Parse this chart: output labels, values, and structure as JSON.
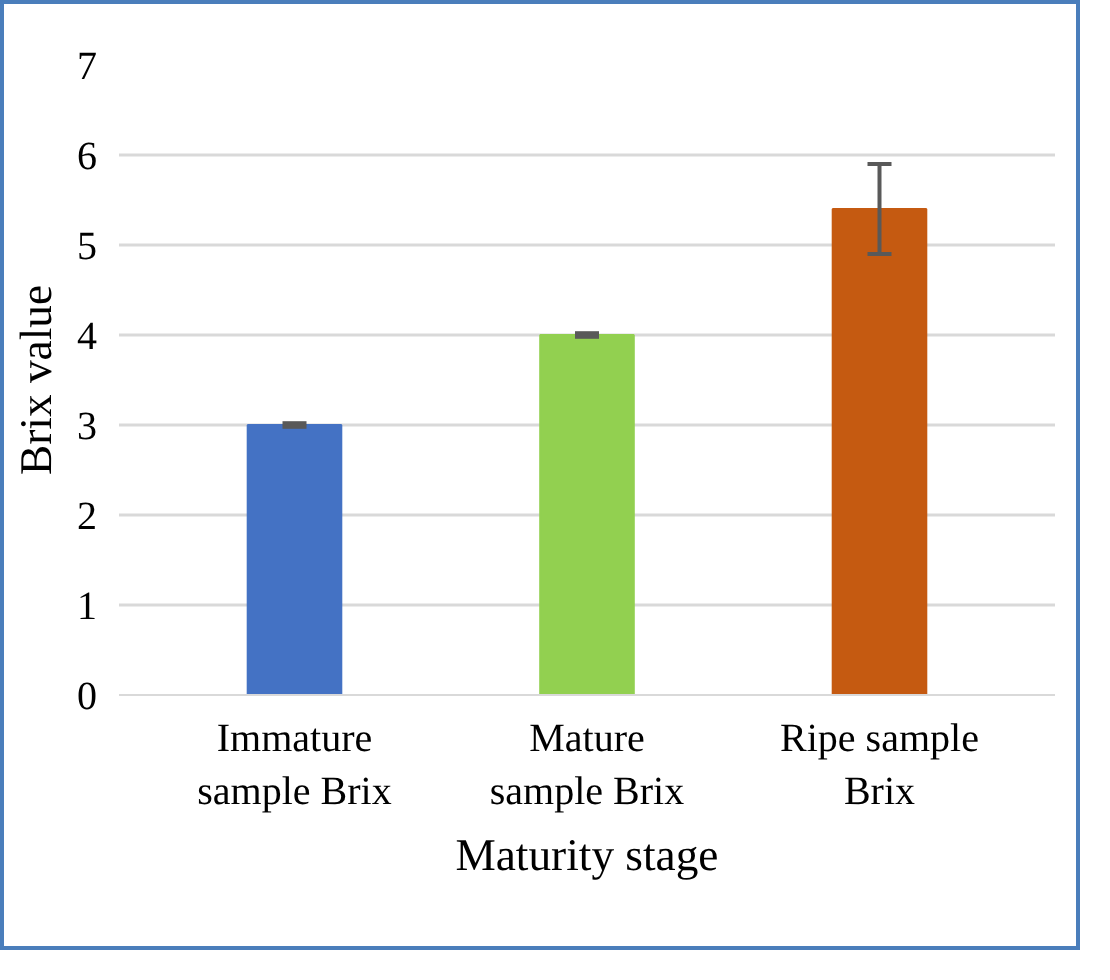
{
  "chart_data": {
    "type": "bar",
    "xlabel": "Maturity stage",
    "ylabel": "Brix value",
    "categories": [
      "Immature\nsample Brix",
      "Mature\nsample Brix",
      "Ripe sample\nBrix"
    ],
    "values": [
      3,
      4,
      5.4
    ],
    "colors": [
      "#4472c4",
      "#92d050",
      "#c55a11"
    ],
    "errors": [
      0.02,
      0.02,
      0.5
    ],
    "ylim": [
      0,
      7
    ],
    "yticks": [
      0,
      1,
      2,
      3,
      4,
      5,
      6,
      7
    ],
    "grid": "y"
  }
}
